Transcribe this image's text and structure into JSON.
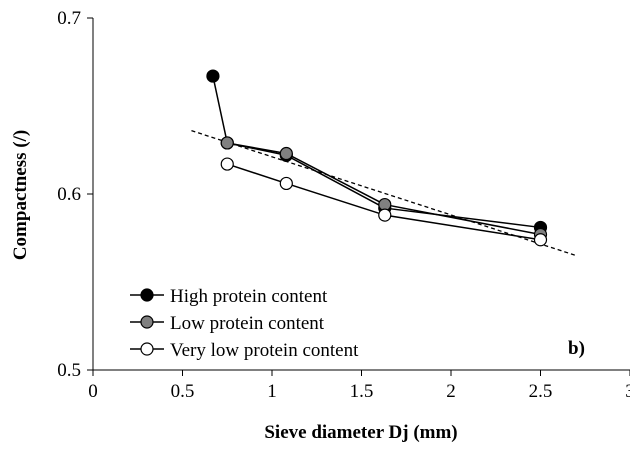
{
  "chart_data": {
    "type": "line",
    "xlabel": "Sieve diameter Dj (mm)",
    "ylabel": "Compactness (/)",
    "xlim": [
      0,
      3
    ],
    "ylim": [
      0.5,
      0.7
    ],
    "x_ticks": [
      "0",
      "0.5",
      "1",
      "1.5",
      "2",
      "2.5",
      "3"
    ],
    "y_ticks": [
      "0.5",
      "0.6",
      "0.7"
    ],
    "grid": false,
    "legend_position": "bottom-left",
    "panel_label": "b)",
    "series": [
      {
        "name": "High protein content",
        "marker_fill": "#000000",
        "x": [
          0.67,
          0.75,
          1.08,
          1.63,
          2.5
        ],
        "y": [
          0.667,
          0.629,
          0.622,
          0.592,
          0.581
        ]
      },
      {
        "name": "Low protein content",
        "marker_fill": "#808080",
        "x": [
          0.75,
          1.08,
          1.63,
          2.5
        ],
        "y": [
          0.629,
          0.623,
          0.594,
          0.577
        ]
      },
      {
        "name": "Very low protein content",
        "marker_fill": "#ffffff",
        "x": [
          0.75,
          1.08,
          1.63,
          2.5
        ],
        "y": [
          0.617,
          0.606,
          0.588,
          0.574
        ]
      }
    ],
    "trendline": {
      "style": "dashed",
      "x": [
        0.55,
        2.7
      ],
      "y": [
        0.636,
        0.565
      ]
    }
  }
}
